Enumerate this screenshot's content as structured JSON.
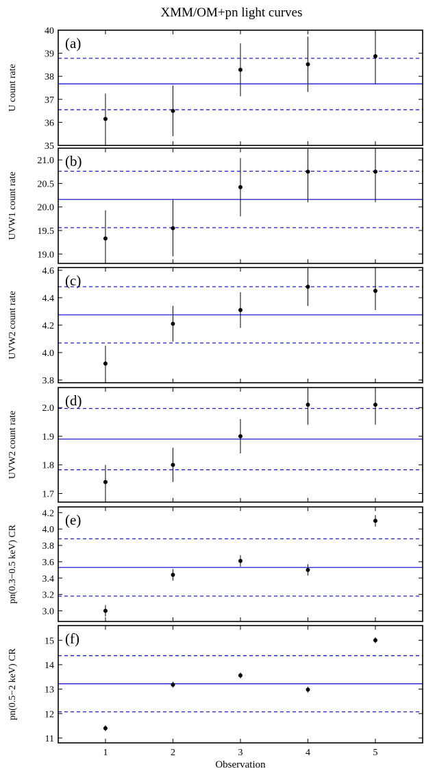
{
  "chart_data": {
    "title": "XMM/OM+pn light curves",
    "xlabel": "Observation",
    "x_ticks": [
      "1",
      "2",
      "3",
      "4",
      "5"
    ],
    "xlim": [
      0.3,
      5.7
    ],
    "panels": [
      {
        "label": "(a)",
        "type": "scatter",
        "ylabel": "U count rate",
        "ylim": [
          35,
          40
        ],
        "yticks": [
          "35",
          "36",
          "37",
          "38",
          "39",
          "40"
        ],
        "ytick_values": [
          35,
          36,
          37,
          38,
          39,
          40
        ],
        "x": [
          1,
          2,
          3,
          4,
          5
        ],
        "y": [
          36.15,
          36.5,
          38.28,
          38.52,
          38.87
        ],
        "yerr": [
          1.1,
          1.1,
          1.15,
          1.2,
          1.2
        ],
        "mean": 37.67,
        "mean_minus_sd": 36.55,
        "mean_plus_sd": 38.78
      },
      {
        "label": "(b)",
        "type": "scatter",
        "ylabel": "UVW1 count rate",
        "ylim": [
          18.8,
          21.25
        ],
        "yticks": [
          "19.0",
          "19.5",
          "20.0",
          "20.5",
          "21.0"
        ],
        "ytick_values": [
          19.0,
          19.5,
          20.0,
          20.5,
          21.0
        ],
        "x": [
          1,
          2,
          3,
          4,
          5
        ],
        "y": [
          19.33,
          19.55,
          20.42,
          20.75,
          20.75
        ],
        "yerr": [
          0.6,
          0.6,
          0.62,
          0.65,
          0.65
        ],
        "mean": 20.16,
        "mean_minus_sd": 19.56,
        "mean_plus_sd": 20.76
      },
      {
        "label": "(c)",
        "type": "scatter",
        "ylabel": "UVW2 count rate",
        "ylim": [
          3.78,
          4.62
        ],
        "yticks": [
          "3.8",
          "4.0",
          "4.2",
          "4.4",
          "4.6"
        ],
        "ytick_values": [
          3.8,
          4.0,
          4.2,
          4.4,
          4.6
        ],
        "x": [
          1,
          2,
          3,
          4,
          5
        ],
        "y": [
          3.92,
          4.21,
          4.31,
          4.48,
          4.45
        ],
        "yerr": [
          0.13,
          0.13,
          0.13,
          0.14,
          0.14
        ],
        "mean": 4.275,
        "mean_minus_sd": 4.07,
        "mean_plus_sd": 4.48
      },
      {
        "label": "(d)",
        "type": "scatter",
        "ylabel": "UVW2 count rate",
        "ylim": [
          1.67,
          2.07
        ],
        "yticks": [
          "1.7",
          "1.8",
          "1.9",
          "2.0"
        ],
        "ytick_values": [
          1.7,
          1.8,
          1.9,
          2.0
        ],
        "x": [
          1,
          2,
          3,
          4,
          5
        ],
        "y": [
          1.74,
          1.8,
          1.9,
          2.01,
          2.01
        ],
        "yerr": [
          0.06,
          0.06,
          0.06,
          0.07,
          0.07
        ],
        "mean": 1.89,
        "mean_minus_sd": 1.783,
        "mean_plus_sd": 1.997
      },
      {
        "label": "(e)",
        "type": "scatter",
        "ylabel": "pn(0.3−0.5 keV) CR",
        "ylim": [
          2.87,
          4.27
        ],
        "yticks": [
          "3.0",
          "3.2",
          "3.4",
          "3.6",
          "3.8",
          "4.0",
          "4.2"
        ],
        "ytick_values": [
          3.0,
          3.2,
          3.4,
          3.6,
          3.8,
          4.0,
          4.2
        ],
        "x": [
          1,
          2,
          3,
          4,
          5
        ],
        "y": [
          3.0,
          3.44,
          3.61,
          3.5,
          4.1
        ],
        "yerr": [
          0.07,
          0.07,
          0.07,
          0.07,
          0.07
        ],
        "mean": 3.53,
        "mean_minus_sd": 3.18,
        "mean_plus_sd": 3.88
      },
      {
        "label": "(f)",
        "type": "scatter",
        "ylabel": "pn(0.5−2 keV) CR",
        "ylim": [
          10.8,
          15.6
        ],
        "yticks": [
          "11",
          "12",
          "13",
          "14",
          "15"
        ],
        "ytick_values": [
          11,
          12,
          13,
          14,
          15
        ],
        "x": [
          1,
          2,
          3,
          4,
          5
        ],
        "y": [
          11.4,
          13.18,
          13.56,
          12.98,
          15.0
        ],
        "yerr": [
          0.12,
          0.12,
          0.12,
          0.12,
          0.12
        ],
        "mean": 13.22,
        "mean_minus_sd": 12.07,
        "mean_plus_sd": 14.37
      }
    ]
  }
}
